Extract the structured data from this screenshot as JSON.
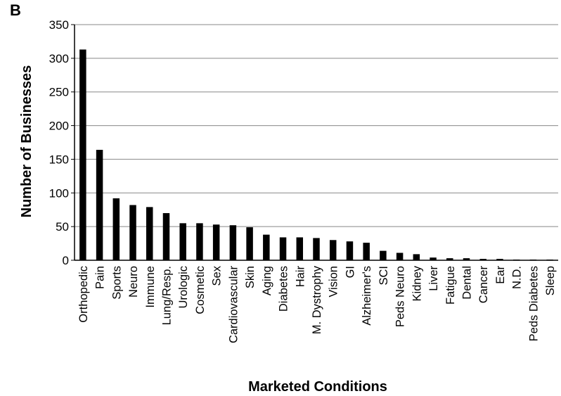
{
  "panel_label": "B",
  "chart_data": {
    "type": "bar",
    "title": "",
    "xlabel": "Marketed Conditions",
    "ylabel": "Number of Businesses",
    "ylim": [
      0,
      350
    ],
    "yticks": [
      0,
      50,
      100,
      150,
      200,
      250,
      300,
      350
    ],
    "grid": "horizontal",
    "legend": "none",
    "bar_color": "#000000",
    "grid_color": "#888888",
    "categories": [
      "Orthopedic",
      "Pain",
      "Sports",
      "Neuro",
      "Immune",
      "Lung/Resp.",
      "Urologic",
      "Cosmetic",
      "Sex",
      "Cardiovascular",
      "Skin",
      "Aging",
      "Diabetes",
      "Hair",
      "M. Dystrophy",
      "Vision",
      "GI",
      "Alzheimer's",
      "SCI",
      "Peds Neuro",
      "Kidney",
      "Liver",
      "Fatigue",
      "Dental",
      "Cancer",
      "Ear",
      "N.D.",
      "Peds Diabetes",
      "Sleep"
    ],
    "values": [
      313,
      164,
      92,
      82,
      79,
      70,
      55,
      55,
      53,
      52,
      49,
      38,
      34,
      34,
      33,
      30,
      28,
      26,
      14,
      11,
      9,
      4,
      3,
      3,
      2,
      2,
      1,
      1,
      1
    ]
  }
}
